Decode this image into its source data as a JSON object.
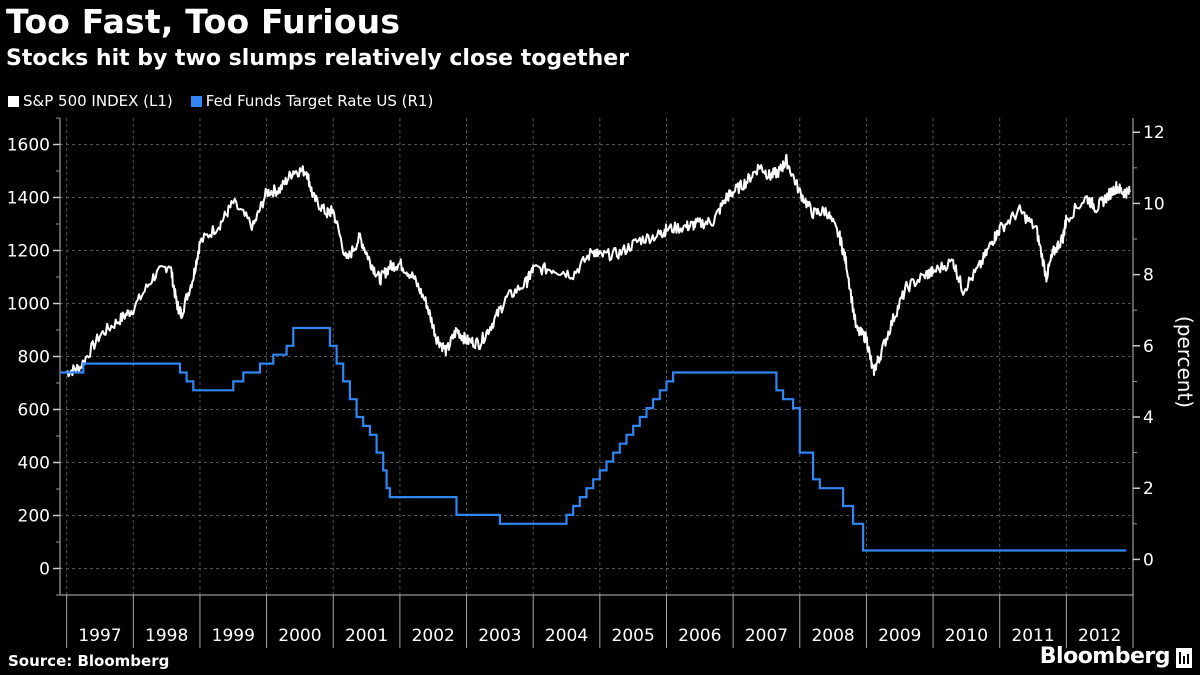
{
  "title": "Too Fast, Too Furious",
  "subtitle": "Stocks hit by two slumps relatively close together",
  "source": "Source: Bloomberg",
  "brand": "Bloomberg",
  "colors": {
    "background": "#000000",
    "sp500": "#ffffff",
    "fedfunds": "#2f86f4",
    "grid": "#555555"
  },
  "legend": [
    {
      "label": "S&P 500 INDEX (L1)",
      "color": "#ffffff"
    },
    {
      "label": "Fed Funds Target Rate US (R1)",
      "color": "#2f86f4"
    }
  ],
  "chart_data": {
    "type": "line",
    "title": "Too Fast, Too Furious",
    "subtitle": "Stocks hit by two slumps relatively close together",
    "x_range": [
      1996.9,
      2013.0
    ],
    "x_ticks": [
      "1997",
      "1998",
      "1999",
      "2000",
      "2001",
      "2002",
      "2003",
      "2004",
      "2005",
      "2006",
      "2007",
      "2008",
      "2009",
      "2010",
      "2011",
      "2012"
    ],
    "y_left": {
      "range": [
        -100,
        1700
      ],
      "ticks": [
        0,
        200,
        400,
        600,
        800,
        1000,
        1200,
        1400,
        1600
      ],
      "label": ""
    },
    "y_right": {
      "range": [
        -1.0,
        12.4
      ],
      "ticks": [
        0,
        2,
        4,
        6,
        8,
        10,
        12
      ],
      "label": "(percent)"
    },
    "series": [
      {
        "name": "S&P 500 INDEX (L1)",
        "axis": "left",
        "x": [
          1997.0,
          1997.2,
          1997.5,
          1997.8,
          1998.0,
          1998.3,
          1998.55,
          1998.65,
          1998.72,
          1998.9,
          1999.0,
          1999.3,
          1999.5,
          1999.8,
          2000.0,
          2000.2,
          2000.4,
          2000.6,
          2000.7,
          2000.9,
          2001.0,
          2001.2,
          2001.4,
          2001.55,
          2001.7,
          2001.85,
          2002.0,
          2002.2,
          2002.4,
          2002.55,
          2002.7,
          2002.85,
          2003.0,
          2003.2,
          2003.4,
          2003.6,
          2003.9,
          2004.0,
          2004.3,
          2004.6,
          2004.9,
          2005.0,
          2005.3,
          2005.6,
          2005.9,
          2006.0,
          2006.3,
          2006.45,
          2006.7,
          2006.9,
          2007.0,
          2007.2,
          2007.4,
          2007.55,
          2007.7,
          2007.8,
          2008.0,
          2008.2,
          2008.4,
          2008.6,
          2008.7,
          2008.85,
          2009.0,
          2009.1,
          2009.2,
          2009.4,
          2009.6,
          2009.9,
          2010.0,
          2010.3,
          2010.45,
          2010.7,
          2010.9,
          2011.0,
          2011.3,
          2011.55,
          2011.7,
          2011.8,
          2011.95,
          2012.0,
          2012.3,
          2012.45,
          2012.6,
          2012.75,
          2012.85,
          2012.95
        ],
        "values": [
          740,
          760,
          880,
          940,
          980,
          1100,
          1150,
          1000,
          960,
          1100,
          1230,
          1300,
          1380,
          1290,
          1420,
          1430,
          1500,
          1500,
          1400,
          1340,
          1350,
          1160,
          1250,
          1160,
          1090,
          1140,
          1150,
          1100,
          1000,
          870,
          820,
          900,
          860,
          850,
          930,
          1020,
          1080,
          1130,
          1130,
          1110,
          1200,
          1180,
          1190,
          1240,
          1260,
          1280,
          1290,
          1300,
          1310,
          1400,
          1420,
          1460,
          1520,
          1480,
          1500,
          1540,
          1420,
          1340,
          1350,
          1250,
          1150,
          900,
          870,
          740,
          800,
          940,
          1060,
          1110,
          1120,
          1160,
          1050,
          1140,
          1240,
          1280,
          1350,
          1280,
          1100,
          1190,
          1250,
          1320,
          1400,
          1360,
          1400,
          1440,
          1420,
          1420
        ]
      },
      {
        "name": "Fed Funds Target Rate US (R1)",
        "axis": "right",
        "step": true,
        "x": [
          1996.9,
          1997.25,
          1998.7,
          1998.8,
          1998.9,
          1999.5,
          1999.65,
          1999.9,
          2000.1,
          2000.3,
          2000.4,
          2000.95,
          2001.05,
          2001.15,
          2001.25,
          2001.35,
          2001.45,
          2001.55,
          2001.65,
          2001.75,
          2001.8,
          2001.85,
          2001.95,
          2002.85,
          2003.5,
          2004.5,
          2004.6,
          2004.7,
          2004.8,
          2004.9,
          2005.0,
          2005.1,
          2005.2,
          2005.3,
          2005.4,
          2005.5,
          2005.6,
          2005.7,
          2005.8,
          2005.9,
          2006.0,
          2006.1,
          2006.2,
          2006.3,
          2006.4,
          2006.5,
          2007.65,
          2007.75,
          2007.9,
          2008.0,
          2008.05,
          2008.2,
          2008.3,
          2008.65,
          2008.8,
          2008.95,
          2012.9
        ],
        "values": [
          5.25,
          5.5,
          5.25,
          5.0,
          4.75,
          5.0,
          5.25,
          5.5,
          5.75,
          6.0,
          6.5,
          6.0,
          5.5,
          5.0,
          4.5,
          4.0,
          3.75,
          3.5,
          3.0,
          2.5,
          2.0,
          1.75,
          1.75,
          1.25,
          1.0,
          1.25,
          1.5,
          1.75,
          2.0,
          2.25,
          2.5,
          2.75,
          3.0,
          3.25,
          3.5,
          3.75,
          4.0,
          4.25,
          4.5,
          4.75,
          5.0,
          5.25,
          5.25,
          5.25,
          5.25,
          5.25,
          4.75,
          4.5,
          4.25,
          3.0,
          3.0,
          2.25,
          2.0,
          1.5,
          1.0,
          0.25,
          0.25
        ]
      }
    ]
  }
}
